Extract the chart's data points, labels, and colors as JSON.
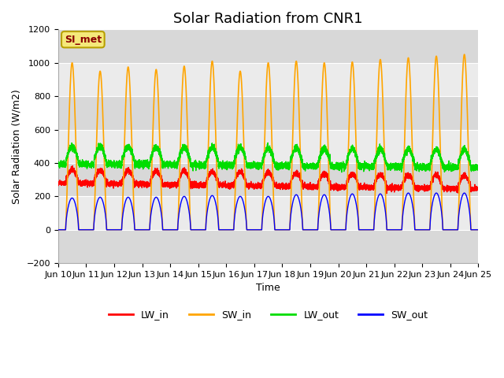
{
  "title": "Solar Radiation from CNR1",
  "xlabel": "Time",
  "ylabel": "Solar Radiation (W/m2)",
  "ylim": [
    -200,
    1200
  ],
  "x_tick_labels": [
    "Jun 10",
    "Jun 11",
    "Jun 12",
    "Jun 13",
    "Jun 14",
    "Jun 15",
    "Jun 16",
    "Jun 17",
    "Jun 18",
    "Jun 19",
    "Jun 20",
    "Jun 21",
    "Jun 22",
    "Jun 23",
    "Jun 24",
    "Jun 25"
  ],
  "annotation_text": "SI_met",
  "annotation_box_color": "#f5e87a",
  "annotation_text_color": "#8b0000",
  "annotation_edge_color": "#b8a000",
  "colors": {
    "LW_in": "#ff0000",
    "SW_in": "#ffa500",
    "LW_out": "#00dd00",
    "SW_out": "#0000ff"
  },
  "background_color": "#ffffff",
  "plot_bg_light": "#ebebeb",
  "plot_bg_dark": "#d8d8d8",
  "grid_color": "#ffffff",
  "yticks": [
    -200,
    0,
    200,
    400,
    600,
    800,
    1000,
    1200
  ],
  "title_fontsize": 13,
  "axis_fontsize": 9,
  "tick_fontsize": 8
}
